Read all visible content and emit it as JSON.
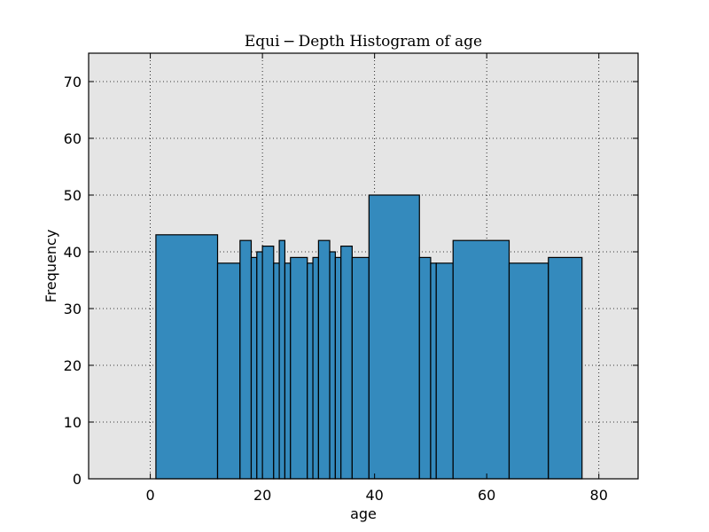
{
  "chart_data": {
    "type": "bar",
    "title": "Equi − Depth Histogram of age",
    "xlabel": "age",
    "ylabel": "Frequency",
    "xlim": [
      -11,
      87
    ],
    "ylim": [
      0,
      75
    ],
    "xticks": [
      0,
      20,
      40,
      60,
      80
    ],
    "yticks": [
      0,
      10,
      20,
      30,
      40,
      50,
      60,
      70
    ],
    "grid": true,
    "bar_color": "#348ABD",
    "edge_color": "#000000",
    "plot_background": "#E5E5E5",
    "bins": [
      {
        "x0": 1,
        "x1": 12,
        "value": 43
      },
      {
        "x0": 12,
        "x1": 16,
        "value": 38
      },
      {
        "x0": 16,
        "x1": 18,
        "value": 42
      },
      {
        "x0": 18,
        "x1": 19,
        "value": 39
      },
      {
        "x0": 19,
        "x1": 20,
        "value": 40
      },
      {
        "x0": 20,
        "x1": 22,
        "value": 41
      },
      {
        "x0": 22,
        "x1": 23,
        "value": 38
      },
      {
        "x0": 23,
        "x1": 24,
        "value": 42
      },
      {
        "x0": 24,
        "x1": 25,
        "value": 38
      },
      {
        "x0": 25,
        "x1": 28,
        "value": 39
      },
      {
        "x0": 28,
        "x1": 29,
        "value": 38
      },
      {
        "x0": 29,
        "x1": 30,
        "value": 39
      },
      {
        "x0": 30,
        "x1": 32,
        "value": 42
      },
      {
        "x0": 32,
        "x1": 33,
        "value": 40
      },
      {
        "x0": 33,
        "x1": 34,
        "value": 39
      },
      {
        "x0": 34,
        "x1": 36,
        "value": 41
      },
      {
        "x0": 36,
        "x1": 39,
        "value": 39
      },
      {
        "x0": 39,
        "x1": 48,
        "value": 50
      },
      {
        "x0": 48,
        "x1": 50,
        "value": 39
      },
      {
        "x0": 50,
        "x1": 51,
        "value": 38
      },
      {
        "x0": 51,
        "x1": 54,
        "value": 38
      },
      {
        "x0": 54,
        "x1": 64,
        "value": 42
      },
      {
        "x0": 64,
        "x1": 71,
        "value": 38
      },
      {
        "x0": 71,
        "x1": 77,
        "value": 39
      }
    ]
  }
}
